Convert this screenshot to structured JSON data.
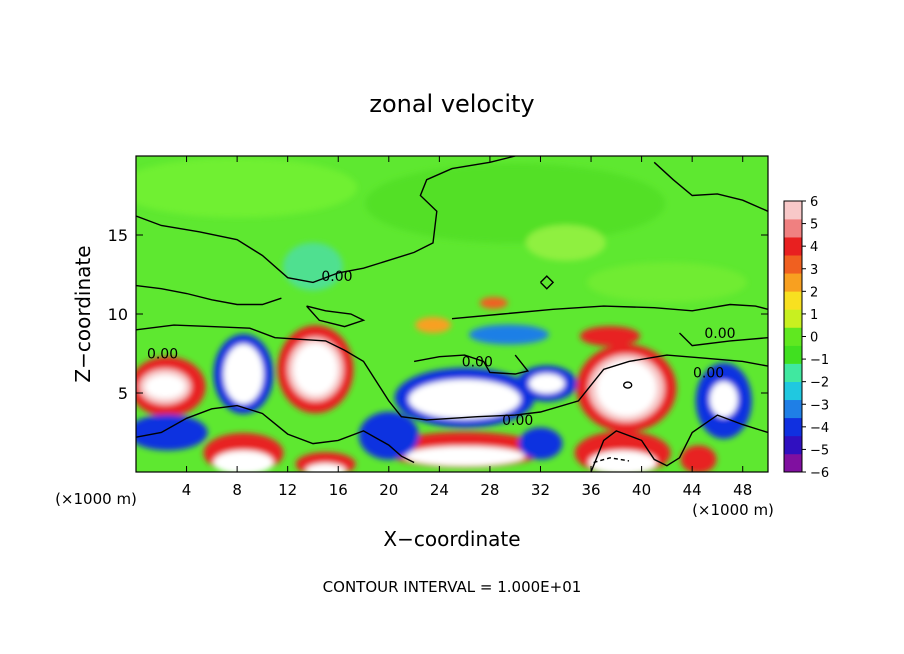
{
  "chart_data": {
    "type": "heatmap",
    "title": "zonal velocity",
    "xlabel": "X−coordinate",
    "ylabel": "Z−coordinate",
    "x_units": "(×1000 m)",
    "y_units": "(×1000 m)",
    "xlim": [
      0,
      50
    ],
    "ylim": [
      0,
      20
    ],
    "x_ticks": [
      4,
      8,
      12,
      16,
      20,
      24,
      28,
      32,
      36,
      40,
      44,
      48
    ],
    "y_ticks": [
      5,
      10,
      15
    ],
    "colorbar": {
      "min": -6,
      "max": 6,
      "ticks": [
        6,
        5,
        4,
        3,
        2,
        1,
        0,
        -1,
        -2,
        -3,
        -4,
        -5,
        -6
      ],
      "tick_labels": [
        "6",
        "5",
        "4",
        "3",
        "2",
        "1",
        "0",
        "−1",
        "−2",
        "−3",
        "−4",
        "−5",
        "−6"
      ],
      "colors": [
        "#8010a0",
        "#3010c0",
        "#1030e0",
        "#1f7fe6",
        "#20c8e0",
        "#40e8a0",
        "#40e020",
        "#60e820",
        "#c8f020",
        "#f8e020",
        "#f8a020",
        "#f06020",
        "#e82020",
        "#f08080",
        "#f8c8c8"
      ],
      "above_max_color": "#ffffff",
      "below_min_color": "#ffffff"
    },
    "contour_labels": [
      {
        "text": "0.00",
        "x": 15.9,
        "y": 12.4
      },
      {
        "text": "0.00",
        "x": 2.1,
        "y": 7.5
      },
      {
        "text": "0.00",
        "x": 27.0,
        "y": 7.0
      },
      {
        "text": "0.00",
        "x": 30.2,
        "y": 3.3
      },
      {
        "text": "0.00",
        "x": 46.2,
        "y": 8.8
      },
      {
        "text": "0.00",
        "x": 45.3,
        "y": 6.3
      }
    ],
    "footer": "CONTOUR INTERVAL = 1.000E+01"
  }
}
